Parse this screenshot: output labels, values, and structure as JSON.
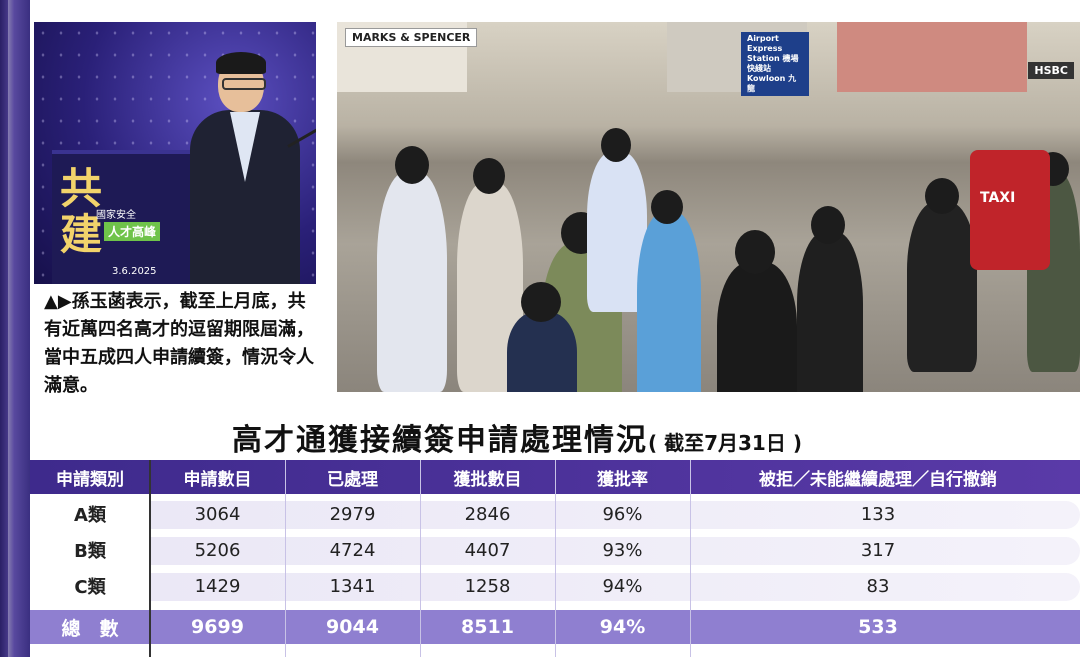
{
  "photo_speaker": {
    "podium_big_text": "共\n建",
    "podium_sub": "國家安全",
    "podium_tag": "人才高峰",
    "podium_date": "3.6.2025"
  },
  "caption": "▲▶孫玉菡表示，截至上月底，共有近萬四名高才的逗留期限屆滿，當中五成四人申請續簽，情況令人滿意。",
  "street_photo": {
    "signs": [
      "MARKS & SPENCER",
      "Airport Express Station 機場快綫站 Kowloon 九龍",
      "HSBC"
    ],
    "taxi": "TAXI"
  },
  "title": {
    "main": "高才通獲接續簽申請處理情況",
    "note": "( 截至7月31日 )"
  },
  "table": {
    "headers": [
      "申請類別",
      "申請數目",
      "已處理",
      "獲批數目",
      "獲批率",
      "被拒／未能繼續處理／自行撤銷"
    ],
    "rows": [
      {
        "category": "A類",
        "applications": "3064",
        "processed": "2979",
        "approved": "2846",
        "rate": "96%",
        "rejected": "133"
      },
      {
        "category": "B類",
        "applications": "5206",
        "processed": "4724",
        "approved": "4407",
        "rate": "93%",
        "rejected": "317"
      },
      {
        "category": "C類",
        "applications": "1429",
        "processed": "1341",
        "approved": "1258",
        "rate": "94%",
        "rejected": "83"
      }
    ],
    "total": {
      "category": "總　數",
      "applications": "9699",
      "processed": "9044",
      "approved": "8511",
      "rate": "94%",
      "rejected": "533"
    }
  },
  "colors": {
    "header_bg": "#4a2f99",
    "total_bg": "#8f7fd0",
    "row_band": "#ebe8f6"
  }
}
